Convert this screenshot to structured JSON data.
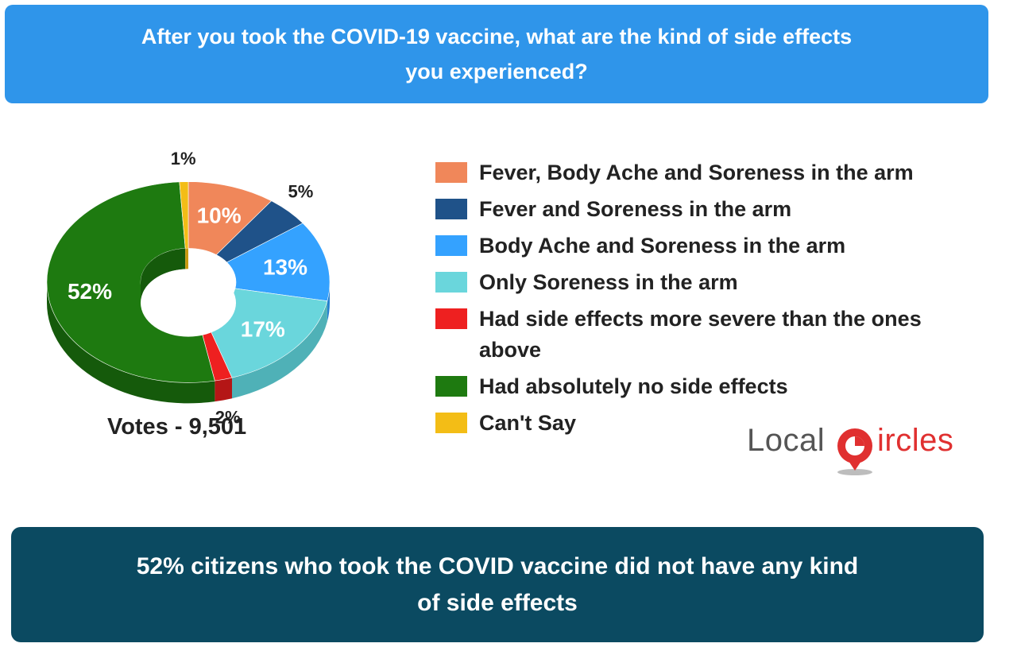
{
  "header": {
    "question": "After you took the COVID-19 vaccine, what are the kind of side effects you experienced?"
  },
  "chart_data": {
    "type": "pie",
    "style": "3d-donut",
    "categories": [
      "Fever, Body Ache and Soreness in the arm",
      "Fever and Soreness in the arm",
      "Body Ache and Soreness in the arm",
      "Only Soreness in the arm",
      "Had side effects more severe than the ones above",
      "Had absolutely no side effects",
      "Can't Say"
    ],
    "values": [
      10,
      5,
      13,
      17,
      2,
      52,
      1
    ],
    "value_labels": [
      "10%",
      "5%",
      "13%",
      "17%",
      "2%",
      "52%",
      "1%"
    ],
    "colors": [
      "#f0875a",
      "#1f5289",
      "#34a2ff",
      "#6ad6dc",
      "#ee2020",
      "#1e7a10",
      "#f3bd16"
    ],
    "side_colors": [
      "#c86a44",
      "#163d66",
      "#2580cf",
      "#4fb1b7",
      "#b41616",
      "#155a0b",
      "#c99a0f"
    ],
    "legend_position": "right"
  },
  "votes_label": "Votes - 9,501",
  "logo": {
    "name_left": "Local",
    "name_right": "ircles",
    "accent": "#e03030"
  },
  "conclusion": {
    "text": "52% citizens who took the COVID vaccine did not have any kind of side effects"
  }
}
